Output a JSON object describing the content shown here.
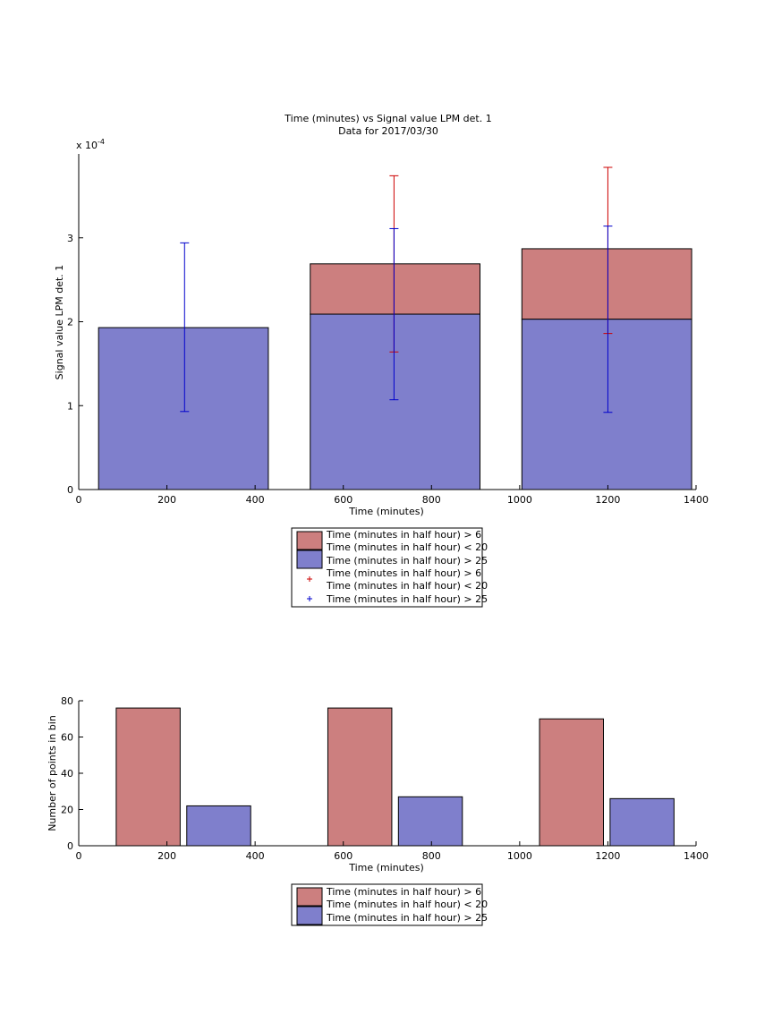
{
  "chart_data": [
    {
      "type": "bar",
      "stacked": true,
      "title": "Time (minutes) vs Signal value LPM det. 1",
      "subtitle": "Data for 2017/03/30",
      "xlabel": "Time (minutes)",
      "ylabel": "Signal value LPM det. 1",
      "y_exponent_label": "x 10",
      "y_exponent_power": "-4",
      "xlim": [
        0,
        1400
      ],
      "ylim": [
        0,
        4
      ],
      "y_scale_factor": "1e-4",
      "xticks": [
        "0",
        "200",
        "400",
        "600",
        "800",
        "1000",
        "1200",
        "1400"
      ],
      "yticks": [
        "0",
        "1",
        "2",
        "3"
      ],
      "bins": [
        {
          "x_start": 45,
          "x_end": 430,
          "center": 240,
          "blue_top": 1.93,
          "red_top": 1.93
        },
        {
          "x_start": 525,
          "x_end": 910,
          "center": 715,
          "blue_top": 2.09,
          "red_top": 2.69
        },
        {
          "x_start": 1005,
          "x_end": 1390,
          "center": 1200,
          "blue_top": 2.03,
          "red_top": 2.87
        }
      ],
      "series": [
        {
          "name": "Time (minutes in half hour) > 6 Time (minutes in half hour) < 20",
          "color": "#cc7f7f",
          "values": [
            0,
            0.6,
            0.84
          ],
          "errorbars": {
            "color": "#cc0000",
            "x": [
              715,
              1200
            ],
            "low": [
              1.64,
              1.86
            ],
            "high": [
              3.74,
              3.84
            ]
          }
        },
        {
          "name": "Time (minutes in half hour) > 25",
          "color": "#7f7fcc",
          "values": [
            1.93,
            2.09,
            2.03
          ],
          "errorbars": {
            "color": "#0000cc",
            "x": [
              240,
              715,
              1200
            ],
            "low": [
              0.93,
              1.07,
              0.92
            ],
            "high": [
              2.94,
              3.11,
              3.14
            ]
          }
        }
      ],
      "legend": {
        "placement": "below",
        "entries": [
          {
            "label_line1": "Time (minutes in half hour) > 6",
            "label_line2": "Time (minutes in half hour) < 20",
            "kind": "patch",
            "color": "#cc7f7f"
          },
          {
            "label_line1": "Time (minutes in half hour) > 25",
            "kind": "patch",
            "color": "#7f7fcc"
          },
          {
            "label_line1": "Time (minutes in half hour) > 6",
            "label_line2": "Time (minutes in half hour) < 20",
            "kind": "marker",
            "color": "#cc0000"
          },
          {
            "label_line1": "Time (minutes in half hour) > 25",
            "kind": "marker",
            "color": "#0000cc"
          }
        ]
      }
    },
    {
      "type": "bar",
      "title": "",
      "xlabel": "Time (minutes)",
      "ylabel": "Number of points in bin",
      "xlim": [
        0,
        1400
      ],
      "ylim": [
        0,
        80
      ],
      "xticks": [
        "0",
        "200",
        "400",
        "600",
        "800",
        "1000",
        "1200",
        "1400"
      ],
      "yticks": [
        "0",
        "20",
        "40",
        "60",
        "80"
      ],
      "bars": [
        {
          "series": 0,
          "x_start": 85,
          "x_end": 230,
          "value": 76
        },
        {
          "series": 1,
          "x_start": 245,
          "x_end": 390,
          "value": 22
        },
        {
          "series": 0,
          "x_start": 565,
          "x_end": 710,
          "value": 76
        },
        {
          "series": 1,
          "x_start": 725,
          "x_end": 870,
          "value": 27
        },
        {
          "series": 0,
          "x_start": 1045,
          "x_end": 1190,
          "value": 70
        },
        {
          "series": 1,
          "x_start": 1205,
          "x_end": 1350,
          "value": 26
        }
      ],
      "series": [
        {
          "name": "Time (minutes in half hour) > 6 Time (minutes in half hour) < 20",
          "color": "#cc7f7f",
          "values": [
            76,
            76,
            70
          ]
        },
        {
          "name": "Time (minutes in half hour) > 25",
          "color": "#7f7fcc",
          "values": [
            22,
            27,
            26
          ]
        }
      ],
      "legend": {
        "placement": "below",
        "entries": [
          {
            "label_line1": "Time (minutes in half hour) > 6",
            "label_line2": "Time (minutes in half hour) < 20",
            "kind": "patch",
            "color": "#cc7f7f"
          },
          {
            "label_line1": "Time (minutes in half hour) > 25",
            "kind": "patch",
            "color": "#7f7fcc"
          }
        ]
      }
    }
  ]
}
